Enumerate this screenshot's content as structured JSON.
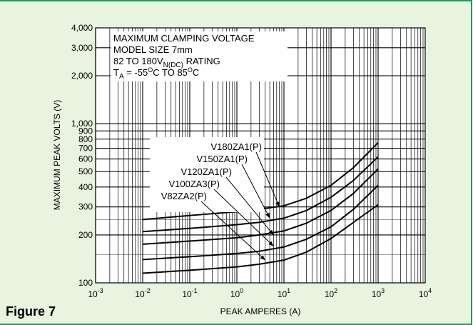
{
  "figure_label": "Figure 7",
  "chart_data": {
    "type": "line",
    "x_scale": "log",
    "y_scale": "log",
    "xlabel": "PEAK AMPERES (A)",
    "ylabel": "MAXIMUM PEAK VOLTS (V)",
    "xlim": [
      0.001,
      10000
    ],
    "ylim": [
      100,
      4000
    ],
    "x_tick_labels": [
      {
        "base": "10",
        "exp": "-3",
        "value": 0.001
      },
      {
        "base": "10",
        "exp": "-2",
        "value": 0.01
      },
      {
        "base": "10",
        "exp": "-1",
        "value": 0.1
      },
      {
        "base": "10",
        "exp": "0",
        "value": 1
      },
      {
        "base": "10",
        "exp": "1",
        "value": 10
      },
      {
        "base": "10",
        "exp": "2",
        "value": 100
      },
      {
        "base": "10",
        "exp": "3",
        "value": 1000
      },
      {
        "base": "10",
        "exp": "4",
        "value": 10000
      }
    ],
    "y_tick_labels": [
      {
        "text": "100",
        "value": 100
      },
      {
        "text": "200",
        "value": 200
      },
      {
        "text": "300",
        "value": 300
      },
      {
        "text": "400",
        "value": 400
      },
      {
        "text": "500",
        "value": 500
      },
      {
        "text": "600",
        "value": 600
      },
      {
        "text": "700",
        "value": 700
      },
      {
        "text": "800",
        "value": 800
      },
      {
        "text": "900",
        "value": 900
      },
      {
        "text": "1,000",
        "value": 1000
      },
      {
        "text": "2,000",
        "value": 2000
      },
      {
        "text": "3,000",
        "value": 3000
      },
      {
        "text": "4,000",
        "value": 4000
      }
    ],
    "grid": true,
    "info_box": {
      "line1": "MAXIMUM CLAMPING VOLTAGE",
      "line2": "MODEL SIZE 7mm",
      "line3_prefix": "82 TO 180V",
      "line3_sub": "N(DC)",
      "line3_suffix": " RATING",
      "line4_prefix": "T",
      "line4_sub": "A",
      "line4_mid1": " = -55",
      "line4_sup1": "O",
      "line4_mid2": "C TO 85",
      "line4_sup2": "O",
      "line4_suffix": "C"
    },
    "series": [
      {
        "name": "V180ZA1(P)",
        "x": [
          0.01,
          0.1,
          1,
          3,
          10,
          30,
          100,
          300,
          1000
        ],
        "y": [
          250,
          265,
          280,
          290,
          305,
          340,
          410,
          530,
          760
        ],
        "label_anchor": [
          8,
          300
        ]
      },
      {
        "name": "V150ZA1(P)",
        "x": [
          0.01,
          0.1,
          1,
          3,
          10,
          30,
          100,
          300,
          1000
        ],
        "y": [
          210,
          220,
          232,
          240,
          255,
          285,
          345,
          440,
          620
        ],
        "label_anchor": [
          5,
          255
        ]
      },
      {
        "name": "V120ZA1(P)",
        "x": [
          0.01,
          0.1,
          1,
          3,
          10,
          30,
          100,
          300,
          1000
        ],
        "y": [
          175,
          183,
          192,
          200,
          212,
          237,
          285,
          365,
          520
        ],
        "label_anchor": [
          6,
          200
        ]
      },
      {
        "name": "V100ZA3(P)",
        "x": [
          0.01,
          0.1,
          1,
          3,
          10,
          30,
          100,
          300,
          1000
        ],
        "y": [
          140,
          146,
          153,
          158,
          168,
          188,
          225,
          290,
          410
        ],
        "label_anchor": [
          6,
          170
        ]
      },
      {
        "name": "V82ZA2(P)",
        "x": [
          0.01,
          0.1,
          1,
          3,
          10,
          30,
          100,
          300,
          1000
        ],
        "y": [
          115,
          120,
          126,
          131,
          139,
          156,
          190,
          240,
          310
        ],
        "label_anchor": [
          4,
          139
        ]
      }
    ]
  }
}
